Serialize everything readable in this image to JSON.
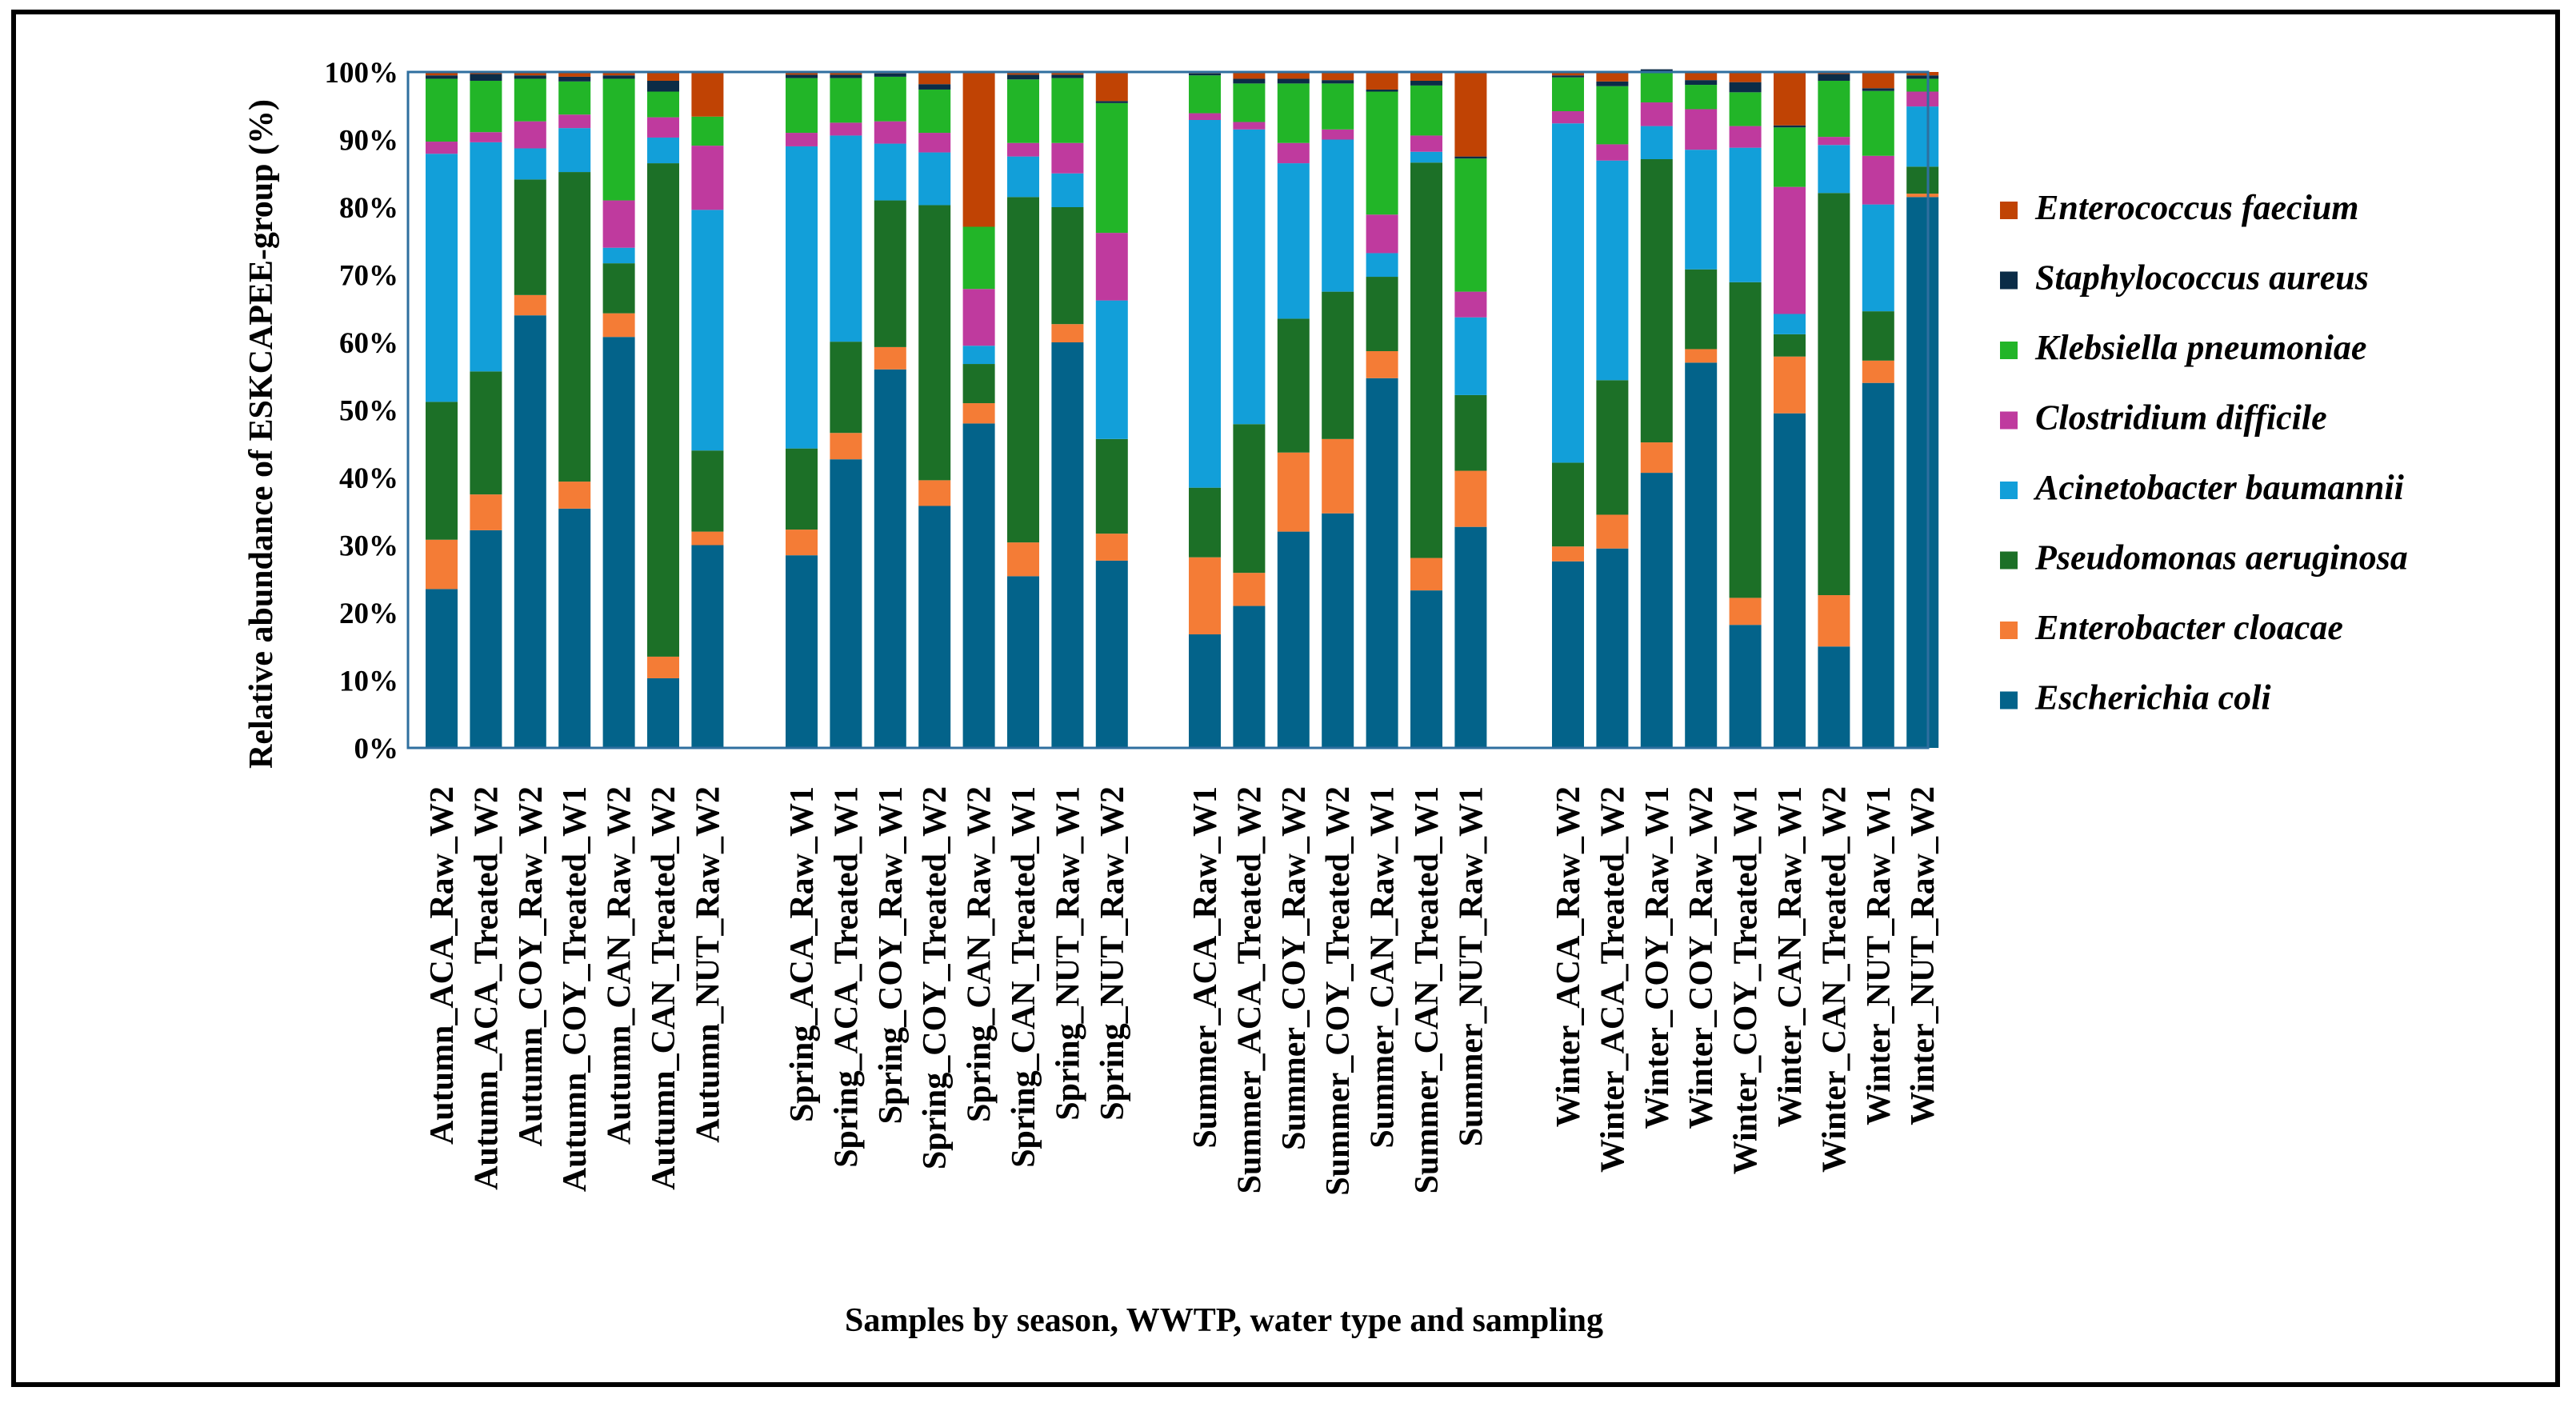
{
  "chart_data": {
    "type": "bar",
    "stacked": true,
    "title": "",
    "ylabel": "Relative abundance of ESKCAPEE-group  (%)",
    "xlabel": "Samples by season, WWTP,  water type and sampling",
    "ylim": [
      0,
      100
    ],
    "yticks": [
      "0%",
      "10%",
      "20%",
      "30%",
      "40%",
      "50%",
      "60%",
      "70%",
      "80%",
      "90%",
      "100%"
    ],
    "legend_position": "right",
    "groups": [
      [
        "Autumn_ACA_Raw_W2",
        "Autumn_ACA_Treated_W2",
        "Autumn_COY_Raw_W2",
        "Autumn_COY_Treated_W1",
        "Autumn_CAN_Raw_W2",
        "Autumn_CAN_Treated_W2",
        "Autumn_NUT_Raw_W2"
      ],
      [
        "Spring_ACA_Raw_W1",
        "Spring_ACA_Treated_W1",
        "Spring_COY_Raw_W1",
        "Spring_COY_Treated_W2",
        "Spring_CAN_Raw_W2",
        "Spring_CAN_Treated_W1",
        "Spring_NUT_Raw_W1",
        "Spring_NUT_Raw_W2"
      ],
      [
        "Summer_ACA_Raw_W1",
        "Summer_ACA_Treated_W2",
        "Summer_COY_Raw_W2",
        "Summer_COY_Treated_W2",
        "Summer_CAN_Raw_W1",
        "Summer_CAN_Treated_W1",
        "Summer_NUT_Raw_W1"
      ],
      [
        "Winter_ACA_Raw_W2",
        "Winter_ACA_Treated_W2",
        "Winter_COY_Raw_W1",
        "Winter_COY_Raw_W2",
        "Winter_COY_Treated_W1",
        "Winter_CAN_Raw_W1",
        "Winter_CAN_Treated_W2",
        "Winter_NUT_Raw_W1",
        "Winter_NUT_Raw_W2"
      ]
    ],
    "series": [
      {
        "name": "Escherichia coli",
        "color": "#03638a",
        "values": [
          23.5,
          32.2,
          64,
          35.4,
          60.8,
          10.3,
          30,
          28.5,
          42.7,
          56,
          35.8,
          48,
          25.4,
          60,
          27.7,
          16.8,
          21,
          32,
          34.7,
          54.7,
          23.3,
          32.7,
          27.6,
          29.5,
          40.7,
          57,
          18.2,
          49.5,
          15,
          54,
          81.5
        ]
      },
      {
        "name": "Enterobacter cloacae",
        "color": "#f47c36",
        "values": [
          7.3,
          5.3,
          3,
          4,
          3.5,
          3.2,
          2,
          3.8,
          3.9,
          3.3,
          3.8,
          3,
          5,
          2.7,
          4,
          11.4,
          4.9,
          11.7,
          11,
          4,
          4.8,
          8.3,
          2.2,
          5,
          4.5,
          2,
          4,
          8.4,
          7.6,
          3.3,
          0.5
        ]
      },
      {
        "name": "Pseudomonas aeruginosa",
        "color": "#1c7027",
        "values": [
          20.4,
          18.2,
          17.1,
          45.8,
          7.4,
          73,
          12,
          12,
          13.5,
          21.7,
          40.7,
          5.8,
          51.1,
          17.3,
          14,
          10.3,
          22,
          19.8,
          21.8,
          11,
          58.5,
          11.2,
          12.4,
          19.9,
          41.9,
          11.8,
          46.7,
          3.3,
          59.5,
          7.3,
          4
        ]
      },
      {
        "name": "Acinetobacter baumannii",
        "color": "#129fd9",
        "values": [
          36.7,
          33.9,
          4.6,
          6.5,
          2.3,
          3.8,
          35.6,
          44.7,
          30.5,
          8.4,
          7.8,
          2.7,
          6,
          5,
          20.5,
          54.4,
          43.6,
          23,
          22.5,
          3.5,
          1.6,
          11.5,
          50.2,
          32.5,
          4.9,
          17.7,
          19.9,
          3,
          7.1,
          15.8,
          8.9
        ]
      },
      {
        "name": "Clostridium difficile",
        "color": "#bf3a9e",
        "values": [
          1.8,
          1.5,
          4,
          2,
          7,
          3,
          9.5,
          2,
          1.9,
          3.3,
          2.9,
          8.4,
          2,
          4.5,
          10,
          1,
          1.1,
          3,
          1.5,
          5.7,
          2.4,
          3.8,
          1.8,
          2.4,
          3.5,
          6,
          3.2,
          18.8,
          1.2,
          7.2,
          2.2
        ]
      },
      {
        "name": "Klebsiella pneumoniae",
        "color": "#22b528",
        "values": [
          9.3,
          7.6,
          6.3,
          4.9,
          18,
          3.8,
          4.3,
          8.1,
          6.6,
          6.6,
          6.4,
          9.2,
          9.4,
          9.6,
          19.2,
          5.6,
          5.7,
          8.8,
          6.8,
          18.2,
          7.4,
          19.7,
          5,
          8.6,
          4.5,
          3.6,
          5,
          8.8,
          8.3,
          9.6,
          1.9
        ]
      },
      {
        "name": "Staphylococcus aureus",
        "color": "#0b2c47",
        "values": [
          0.5,
          1,
          0.5,
          0.7,
          0.5,
          1.6,
          0,
          0.5,
          0.5,
          0.5,
          0.8,
          0,
          0.7,
          0.5,
          0.3,
          0.3,
          0.7,
          0.7,
          0.5,
          0.3,
          0.7,
          0.3,
          0.3,
          0.7,
          0.4,
          0.7,
          1.5,
          0.3,
          1,
          0.4,
          0.5
        ]
      },
      {
        "name": "Enterococcus faecium",
        "color": "#c04304",
        "values": [
          0.5,
          0.3,
          0.5,
          0.7,
          0.5,
          1.3,
          6.6,
          0.4,
          0.4,
          0.2,
          1.8,
          22.9,
          0.4,
          0.4,
          4.3,
          0.2,
          1,
          1,
          1.2,
          2.6,
          1.3,
          12.5,
          0.5,
          1.4,
          0,
          1.2,
          1.5,
          7.9,
          0.3,
          2.4,
          0.5
        ]
      }
    ]
  }
}
